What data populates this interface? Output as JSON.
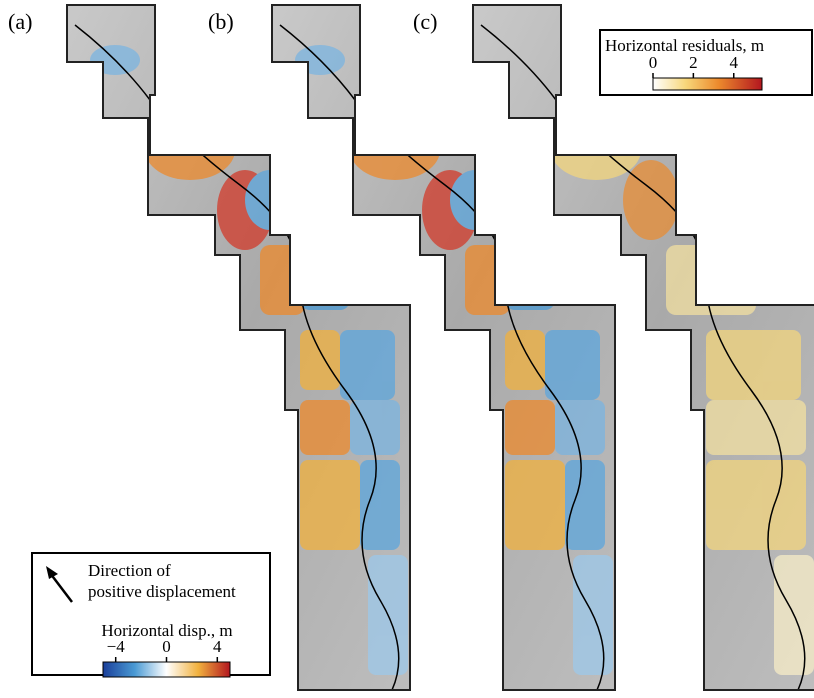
{
  "panels": [
    {
      "label": "(a)"
    },
    {
      "label": "(b)"
    },
    {
      "label": "(c)"
    }
  ],
  "residuals_legend": {
    "title": "Horizontal residuals, m",
    "range": [
      0,
      5.4
    ],
    "ticks": [
      0,
      2,
      4
    ]
  },
  "displacement_legend": {
    "direction_text": [
      "Direction of",
      "positive displacement"
    ],
    "title": "Horizontal disp., m",
    "range": [
      -5,
      5
    ],
    "ticks": [
      {
        "value": -4,
        "label": "−4"
      },
      0,
      4
    ]
  }
}
